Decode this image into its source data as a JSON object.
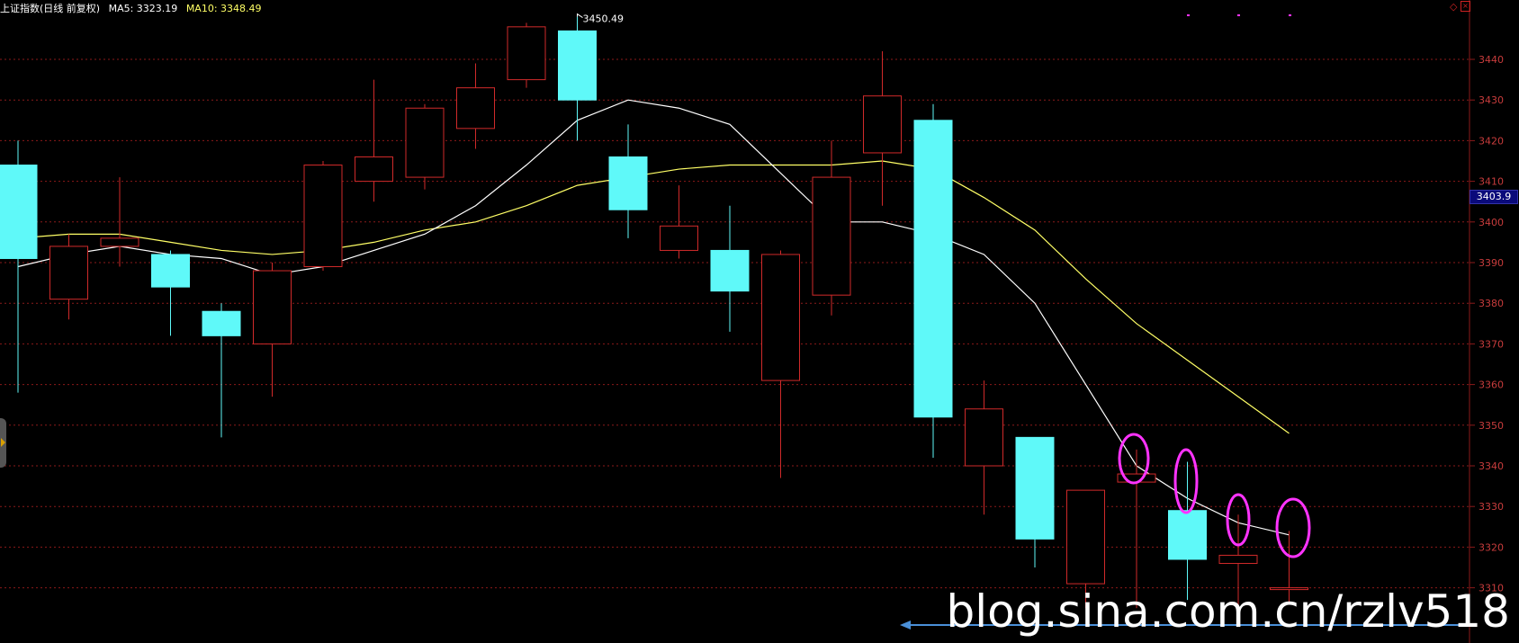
{
  "header": {
    "title": "上证指数(日线 前复权)",
    "ma5_label": "MA5: 3323.19",
    "ma10_label": "MA10: 3348.49"
  },
  "price_tag": "3403.9",
  "watermark": "blog.sina.com.cn/rzlv518",
  "colors": {
    "background": "#000000",
    "up": "#d02a2a",
    "down": "#5ff9f9",
    "ma5": "#ffffff",
    "ma10": "#ffff66",
    "grid": "#8b1a1a",
    "axis_text": "#c83c3c",
    "annotation_circle": "#ff33ff",
    "arrow": "#4a90d9"
  },
  "chart_data": {
    "type": "candlestick",
    "title": "上证指数(日线 前复权)",
    "ylim": [
      3305,
      3455
    ],
    "yticks": [
      3310,
      3320,
      3330,
      3340,
      3350,
      3360,
      3370,
      3380,
      3390,
      3400,
      3410,
      3420,
      3430,
      3440
    ],
    "high_annotation": "3450.49",
    "current_price": "3403.9",
    "candles": [
      {
        "open": 3414,
        "close": 3391,
        "high": 3420,
        "low": 3358
      },
      {
        "open": 3381,
        "close": 3394,
        "high": 3397,
        "low": 3376
      },
      {
        "open": 3394,
        "close": 3396,
        "high": 3411,
        "low": 3389
      },
      {
        "open": 3392,
        "close": 3384,
        "high": 3393,
        "low": 3372
      },
      {
        "open": 3378,
        "close": 3372,
        "high": 3380,
        "low": 3347
      },
      {
        "open": 3370,
        "close": 3388,
        "high": 3390,
        "low": 3357
      },
      {
        "open": 3389,
        "close": 3414,
        "high": 3415,
        "low": 3388
      },
      {
        "open": 3410,
        "close": 3416,
        "high": 3435,
        "low": 3405
      },
      {
        "open": 3411,
        "close": 3428,
        "high": 3429,
        "low": 3408
      },
      {
        "open": 3423,
        "close": 3433,
        "high": 3439,
        "low": 3418
      },
      {
        "open": 3435,
        "close": 3448,
        "high": 3449,
        "low": 3433
      },
      {
        "open": 3447,
        "close": 3430,
        "high": 3450.49,
        "low": 3420
      },
      {
        "open": 3416,
        "close": 3403,
        "high": 3424,
        "low": 3396
      },
      {
        "open": 3393,
        "close": 3399,
        "high": 3409,
        "low": 3391
      },
      {
        "open": 3393,
        "close": 3383,
        "high": 3404,
        "low": 3373
      },
      {
        "open": 3361,
        "close": 3392,
        "high": 3393,
        "low": 3337
      },
      {
        "open": 3382,
        "close": 3411,
        "high": 3420,
        "low": 3377
      },
      {
        "open": 3417,
        "close": 3431,
        "high": 3442,
        "low": 3404
      },
      {
        "open": 3425,
        "close": 3352,
        "high": 3429,
        "low": 3342
      },
      {
        "open": 3340,
        "close": 3354,
        "high": 3361,
        "low": 3328
      },
      {
        "open": 3347,
        "close": 3322,
        "high": 3347,
        "low": 3315
      },
      {
        "open": 3311,
        "close": 3334,
        "high": 3334,
        "low": 3305
      },
      {
        "open": 3336,
        "close": 3338,
        "high": 3344,
        "low": 3305
      },
      {
        "open": 3329,
        "close": 3317,
        "high": 3341,
        "low": 3307
      },
      {
        "open": 3316,
        "close": 3318,
        "high": 3328,
        "low": 3305
      },
      {
        "open": 3310,
        "close": 3310,
        "high": 3324,
        "low": 3306
      }
    ],
    "ma5": [
      3389,
      3392,
      3394,
      3392,
      3391,
      3387,
      3389,
      3393,
      3397,
      3404,
      3414,
      3425,
      3430,
      3428,
      3424,
      3412,
      3400,
      3400,
      3397,
      3392,
      3380,
      3360,
      3340,
      3332,
      3326,
      3323
    ],
    "ma10": [
      3396,
      3397,
      3397,
      3395,
      3393,
      3392,
      3393,
      3395,
      3398,
      3400,
      3404,
      3409,
      3411,
      3413,
      3414,
      3414,
      3414,
      3415,
      3413,
      3406,
      3398,
      3386,
      3375,
      3366,
      3357,
      3348
    ],
    "annotated_candles": [
      22,
      23,
      24,
      25
    ]
  }
}
